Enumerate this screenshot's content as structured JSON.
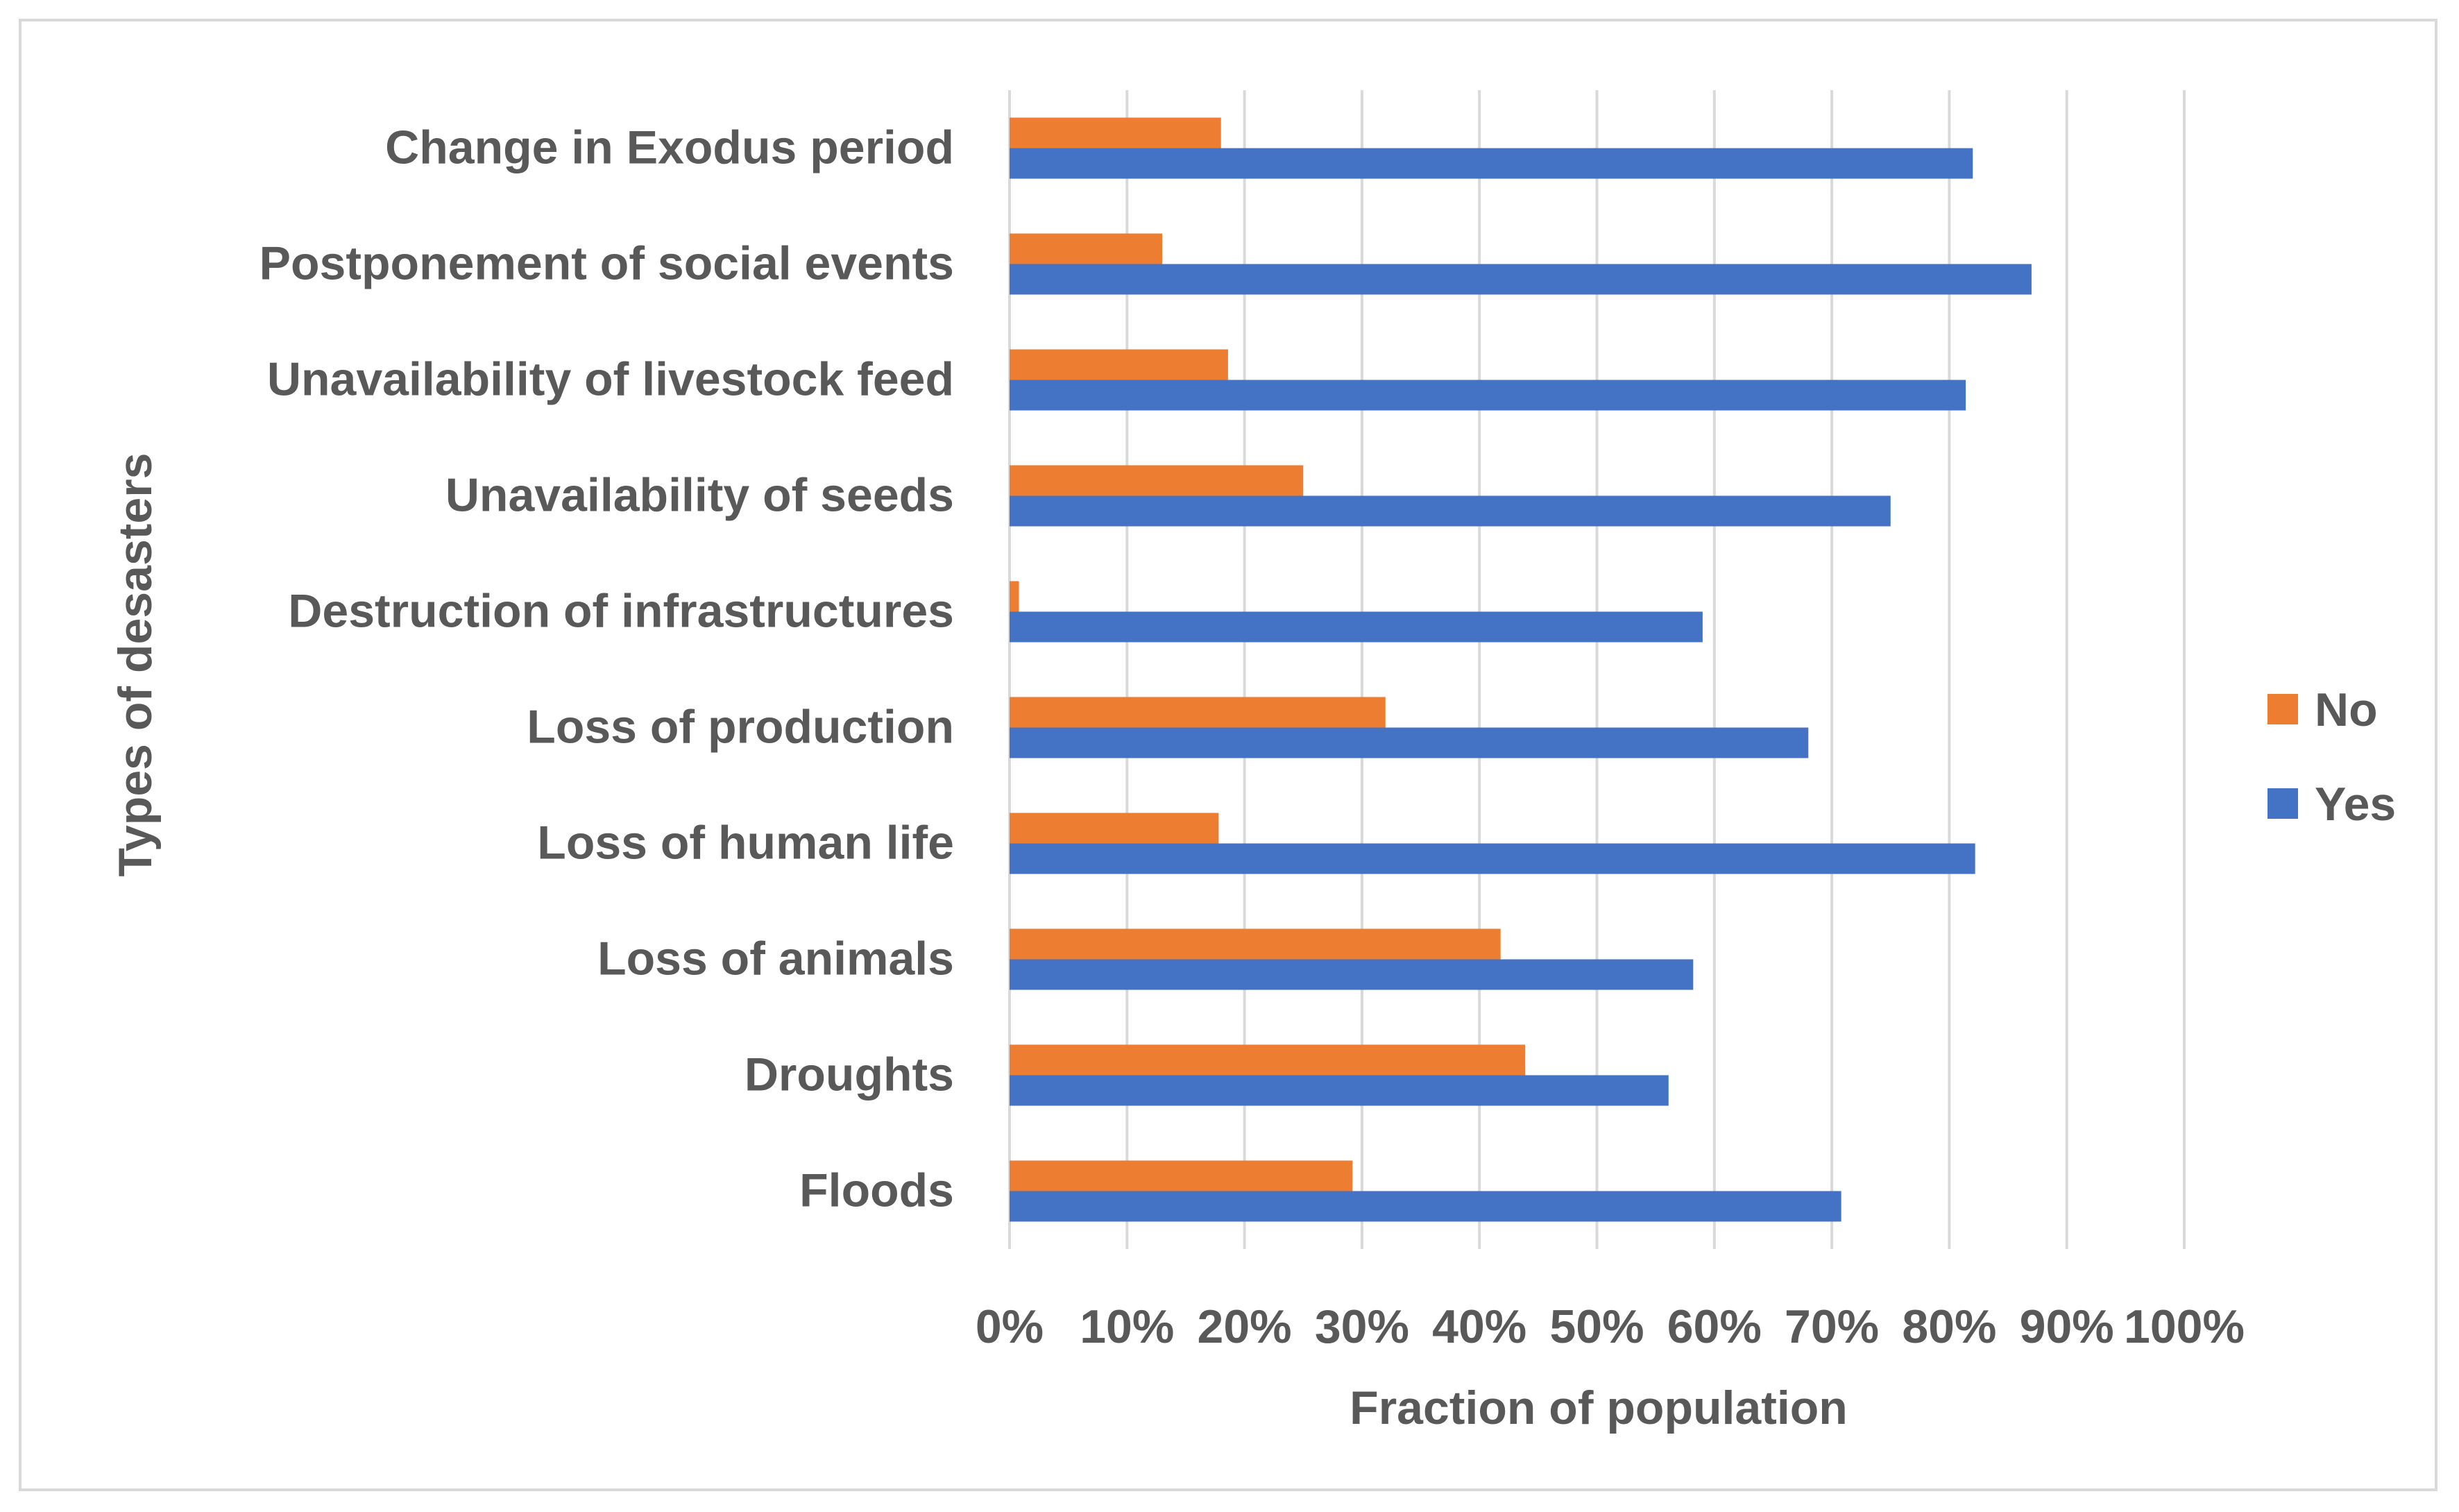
{
  "chart_data": {
    "type": "bar",
    "orientation": "horizontal",
    "title": "",
    "xlabel": "Fraction of population",
    "ylabel": "Types  of desasters",
    "xlim": [
      0,
      100
    ],
    "x_ticks": [
      "0%",
      "10%",
      "20%",
      "30%",
      "40%",
      "50%",
      "60%",
      "70%",
      "80%",
      "90%",
      "100%"
    ],
    "grid": true,
    "legend_position": "right",
    "categories": [
      "Change in Exodus period",
      "Postponement of social events",
      "Unavailability of livestock feed",
      "Unavailability of seeds",
      "Destruction of infrastructures",
      "Loss of production",
      "Loss of human life",
      "Loss of animals",
      "Droughts",
      "Floods"
    ],
    "series": [
      {
        "name": "No",
        "color": "#ed7d31",
        "values": [
          18,
          13,
          18.6,
          25,
          0.8,
          32,
          17.8,
          41.8,
          43.9,
          29.2
        ]
      },
      {
        "name": "Yes",
        "color": "#4472c4",
        "values": [
          82,
          87,
          81.4,
          75,
          59,
          68,
          82.2,
          58.2,
          56.1,
          70.8
        ]
      }
    ],
    "legend": [
      "No",
      "Yes"
    ]
  }
}
